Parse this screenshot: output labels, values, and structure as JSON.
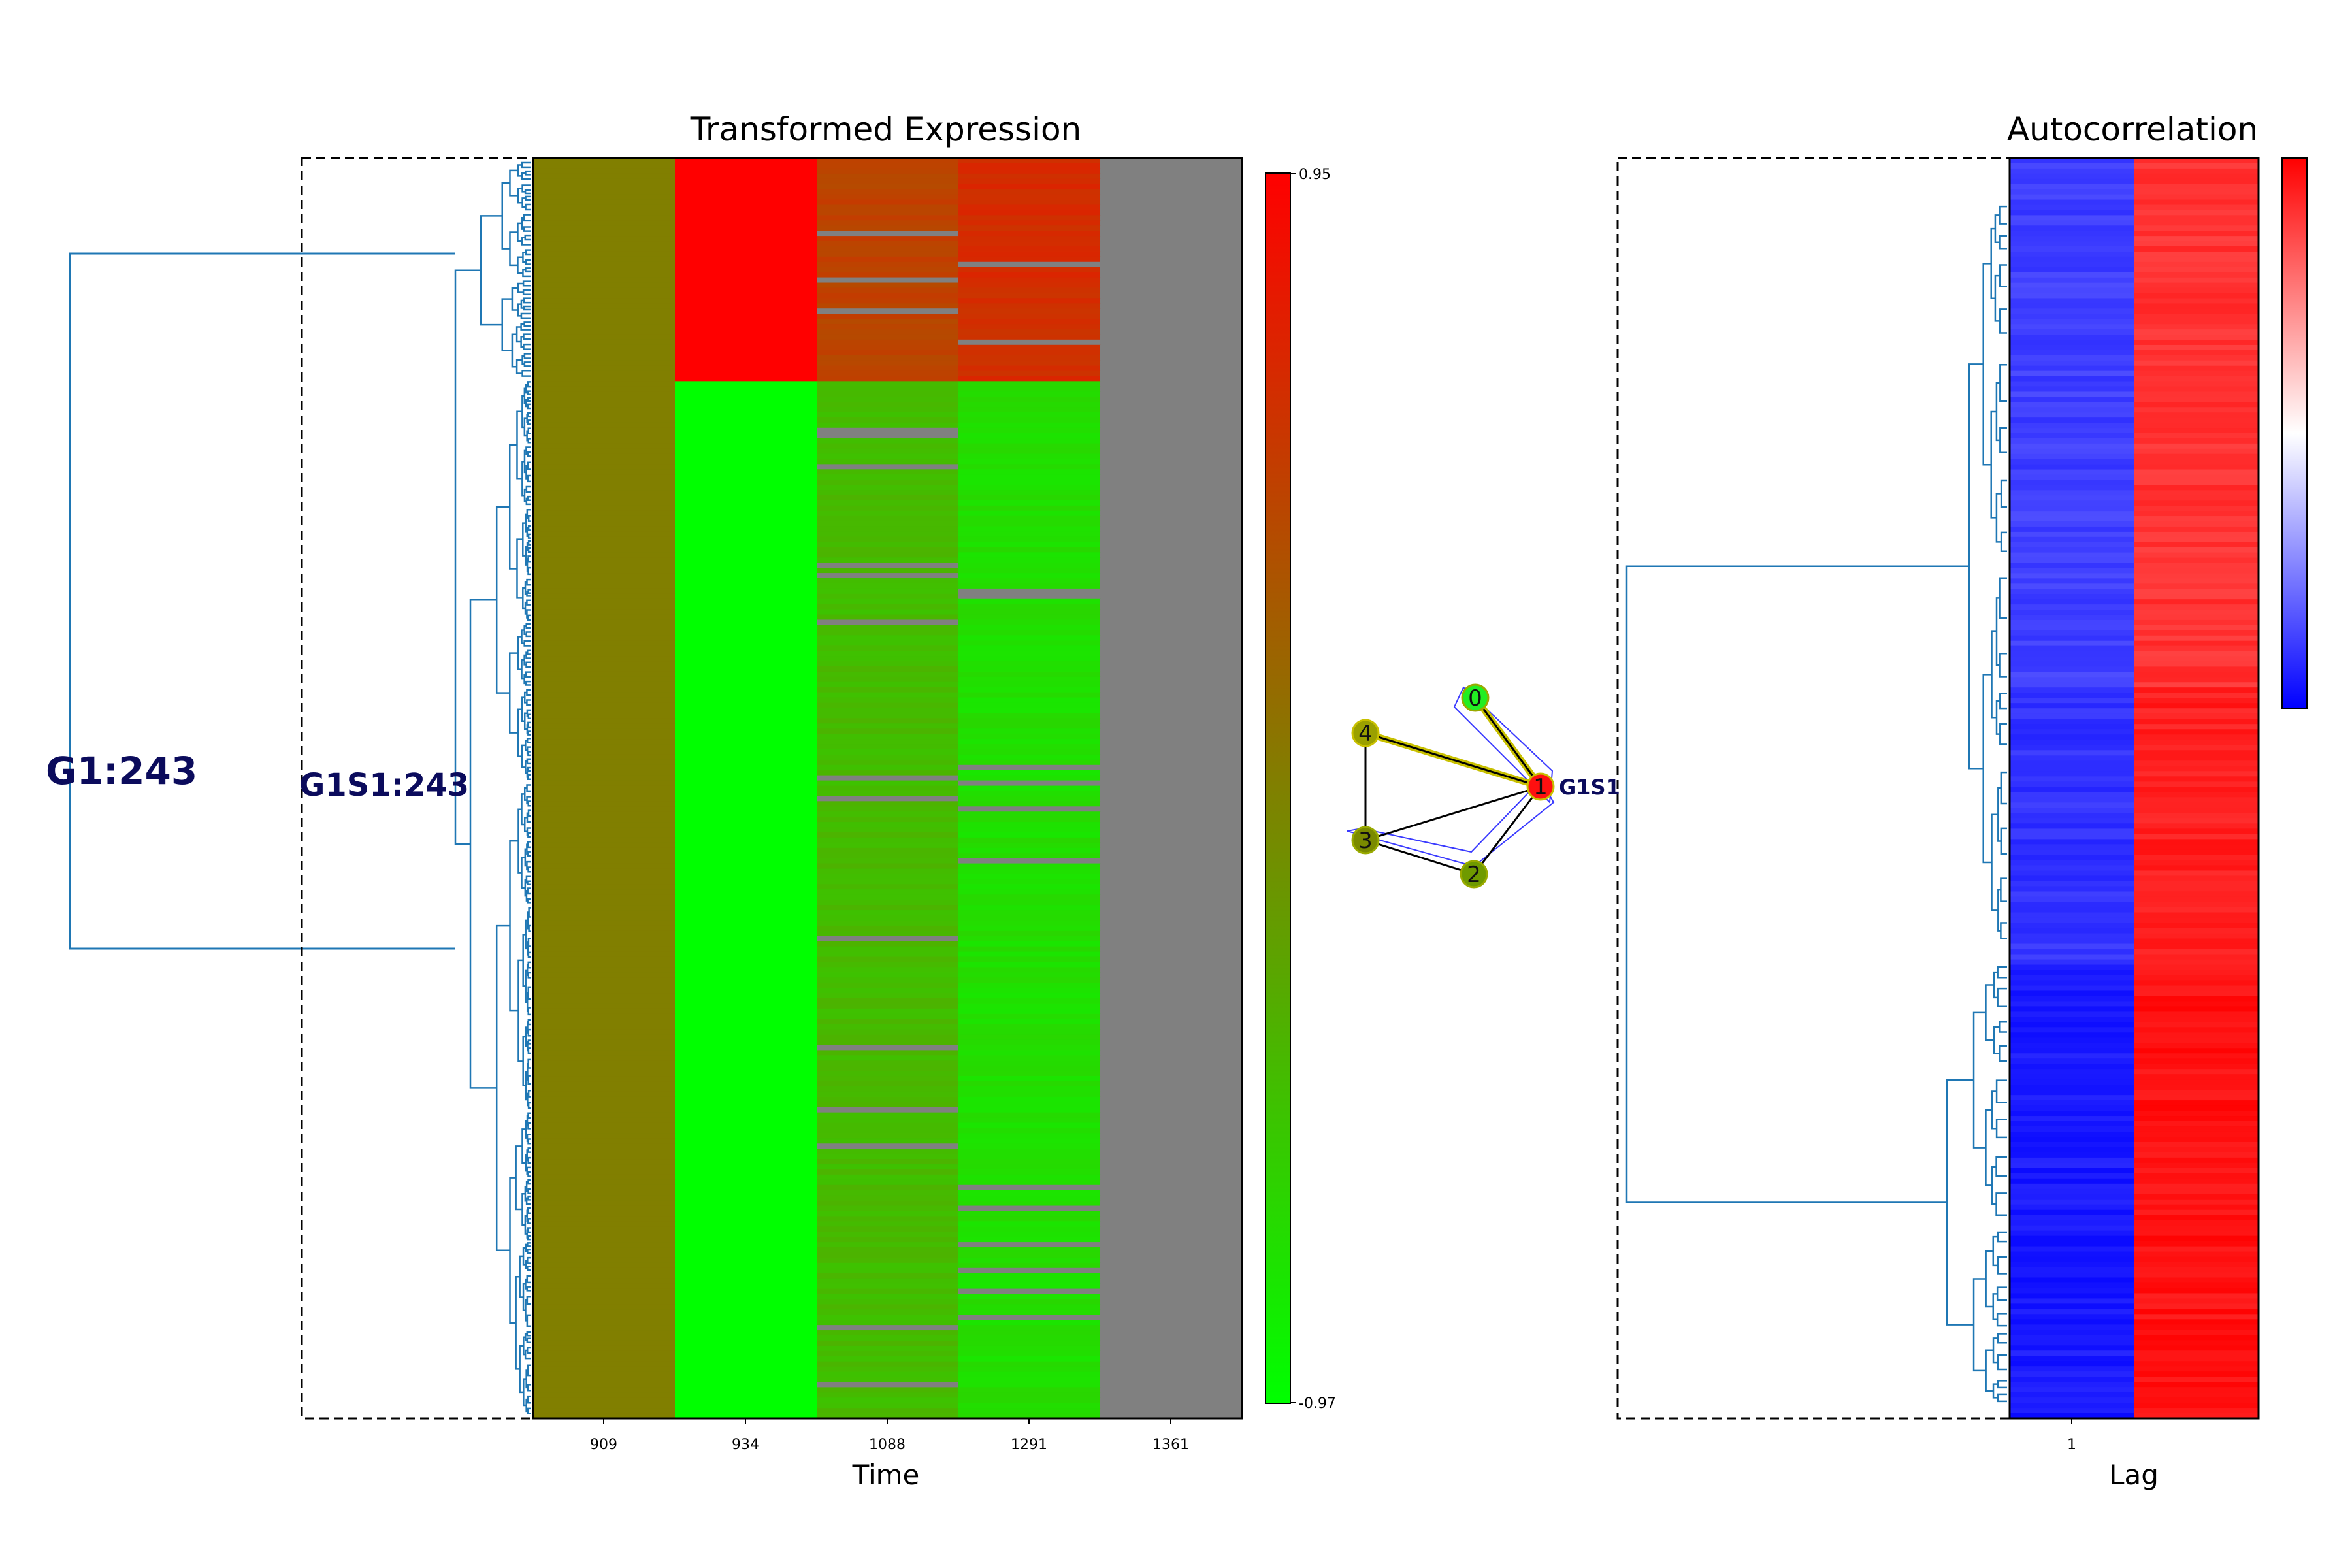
{
  "chart_data": [
    {
      "type": "heatmap",
      "title": "Transformed Expression",
      "xlabel": "Time",
      "x_tick_labels": [
        "909",
        "934",
        "1088",
        "1291",
        "1361"
      ],
      "colorbar": {
        "min": -0.97,
        "max": 0.95,
        "min_label": "-0.97",
        "max_label": "0.95",
        "low_color": "#00ff00",
        "mid_color": "#808000",
        "high_color": "#ff0000",
        "missing_color": "#808080"
      },
      "row_count": 243,
      "row_bands": [
        {
          "rows_fraction": 0.177,
          "values": [
            0.0,
            0.95,
            0.45,
            0.62,
            null
          ]
        },
        {
          "rows_fraction": 0.823,
          "values": [
            0.0,
            -0.97,
            -0.45,
            -0.72,
            null
          ]
        }
      ],
      "dendrogram": {
        "position": "left",
        "color": "#1f77b4"
      },
      "cluster_labels": [
        "G1:243",
        "G1S1:243"
      ]
    },
    {
      "type": "network",
      "nodes": [
        {
          "id": "0",
          "color": "#22ee22"
        },
        {
          "id": "1",
          "color": "#ff1010"
        },
        {
          "id": "2",
          "color": "#6f9a00"
        },
        {
          "id": "3",
          "color": "#7a8a00"
        },
        {
          "id": "4",
          "color": "#9aa000"
        }
      ],
      "edges": [
        [
          "0",
          "1"
        ],
        [
          "4",
          "1"
        ],
        [
          "3",
          "1"
        ],
        [
          "2",
          "1"
        ],
        [
          "3",
          "2"
        ],
        [
          "4",
          "3"
        ]
      ],
      "highlighted_edges": [
        [
          "0",
          "1"
        ],
        [
          "4",
          "1"
        ],
        [
          "3",
          "2"
        ],
        [
          "2",
          "1"
        ]
      ],
      "side_label": "G1S1"
    },
    {
      "type": "heatmap",
      "title": "Autocorrelation",
      "xlabel": "Lag",
      "x_tick_labels": [
        "1"
      ],
      "row_bands": [
        {
          "rows_fraction": 0.42,
          "values": [
            -0.75,
            0.8
          ]
        },
        {
          "rows_fraction": 0.22,
          "values": [
            -0.8,
            0.88
          ]
        },
        {
          "rows_fraction": 0.36,
          "values": [
            -0.9,
            0.93
          ]
        }
      ],
      "colorbar": {
        "low_color": "#0000ff",
        "mid_color": "#ffffff",
        "high_color": "#ff0000"
      },
      "dendrogram": {
        "position": "left",
        "color": "#1f77b4"
      }
    }
  ]
}
